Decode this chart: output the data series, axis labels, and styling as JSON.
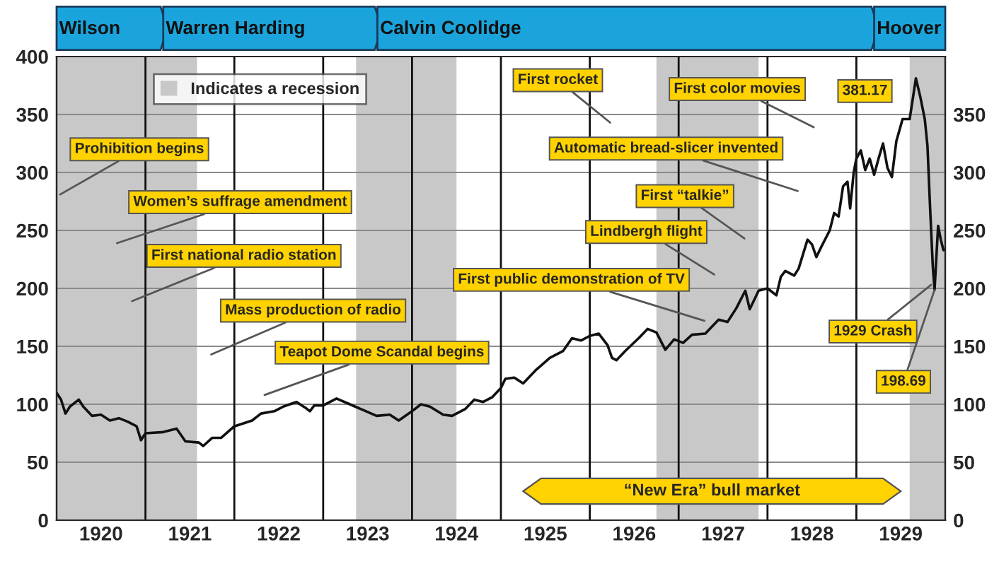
{
  "chart_data": {
    "type": "line",
    "x": [
      1920.0,
      1920.05,
      1920.1,
      1920.15,
      1920.25,
      1920.3,
      1920.4,
      1920.5,
      1920.6,
      1920.7,
      1920.8,
      1920.9,
      1920.95,
      1921.0,
      1921.2,
      1921.35,
      1921.45,
      1921.6,
      1921.65,
      1921.75,
      1921.85,
      1922.0,
      1922.2,
      1922.3,
      1922.45,
      1922.55,
      1922.7,
      1922.8,
      1922.85,
      1922.9,
      1923.0,
      1923.15,
      1923.3,
      1923.45,
      1923.6,
      1923.75,
      1923.85,
      1924.0,
      1924.1,
      1924.2,
      1924.35,
      1924.45,
      1924.6,
      1924.7,
      1924.8,
      1924.9,
      1925.0,
      1925.05,
      1925.15,
      1925.25,
      1925.4,
      1925.55,
      1925.7,
      1925.8,
      1925.9,
      1926.0,
      1926.1,
      1926.2,
      1926.25,
      1926.3,
      1926.4,
      1926.55,
      1926.65,
      1926.75,
      1926.85,
      1926.95,
      1927.05,
      1927.15,
      1927.3,
      1927.45,
      1927.55,
      1927.65,
      1927.75,
      1927.8,
      1927.9,
      1928.0,
      1928.1,
      1928.15,
      1928.2,
      1928.3,
      1928.35,
      1928.45,
      1928.5,
      1928.55,
      1928.6,
      1928.7,
      1928.75,
      1928.8,
      1928.85,
      1928.9,
      1928.93,
      1928.97,
      1929.0,
      1929.05,
      1929.1,
      1929.15,
      1929.2,
      1929.25,
      1929.3,
      1929.35,
      1929.4,
      1929.45,
      1929.52,
      1929.6,
      1929.67,
      1929.72,
      1929.77,
      1929.8,
      1929.83,
      1929.86,
      1929.88,
      1929.92,
      1929.95,
      1929.98
    ],
    "series": [
      {
        "color": "#111111",
        "values": [
          110,
          104,
          92,
          98,
          104,
          98,
          90,
          91,
          86,
          88,
          85,
          81,
          69,
          75,
          76,
          79,
          68,
          67,
          64,
          71,
          71,
          81,
          86,
          92,
          94,
          98,
          102,
          97,
          94,
          99,
          99,
          105,
          100,
          95,
          90,
          91,
          86,
          94,
          100,
          98,
          91,
          90,
          96,
          104,
          102,
          106,
          114,
          122,
          123,
          118,
          130,
          140,
          146,
          157,
          155,
          159,
          161,
          151,
          140,
          138,
          146,
          157,
          165,
          162,
          147,
          156,
          153,
          160,
          161,
          173,
          171,
          183,
          198,
          182,
          198,
          200,
          194,
          210,
          215,
          211,
          217,
          242,
          238,
          227,
          235,
          250,
          265,
          262,
          288,
          292,
          269,
          300,
          312,
          319,
          302,
          312,
          298,
          312,
          325,
          304,
          296,
          327,
          346,
          346,
          381.17,
          365,
          346,
          323,
          269,
          219,
          198.69,
          254,
          242,
          233
        ]
      }
    ],
    "xlim": [
      1920,
      1930
    ],
    "xticks": [
      {
        "value": 1920.5,
        "label": "1920"
      },
      {
        "value": 1921,
        "label": null
      },
      {
        "value": 1921.5,
        "label": "1921"
      },
      {
        "value": 1922,
        "label": null
      },
      {
        "value": 1922.5,
        "label": "1922"
      },
      {
        "value": 1923,
        "label": null
      },
      {
        "value": 1923.5,
        "label": "1923"
      },
      {
        "value": 1924,
        "label": null
      },
      {
        "value": 1924.5,
        "label": "1924"
      },
      {
        "value": 1925,
        "label": null
      },
      {
        "value": 1925.5,
        "label": "1925"
      },
      {
        "value": 1926,
        "label": null
      },
      {
        "value": 1926.5,
        "label": "1926"
      },
      {
        "value": 1927,
        "label": null
      },
      {
        "value": 1927.5,
        "label": "1927"
      },
      {
        "value": 1928,
        "label": null
      },
      {
        "value": 1928.5,
        "label": "1928"
      },
      {
        "value": 1929,
        "label": null
      },
      {
        "value": 1929.5,
        "label": "1929"
      }
    ],
    "ylim": [
      0,
      400
    ],
    "yticks": [
      0,
      50,
      100,
      150,
      200,
      250,
      300,
      350,
      400
    ],
    "y2lim": [
      0,
      400
    ],
    "y2ticks": [
      0,
      50,
      100,
      150,
      200,
      250,
      300,
      350
    ],
    "grid": true,
    "legend": "top left",
    "bands": [
      {
        "axis": "x",
        "from": 1920.0,
        "to": 1921.58,
        "color": "#c8c8c8",
        "label": "Indicates a recession"
      },
      {
        "axis": "x",
        "from": 1923.37,
        "to": 1924.5,
        "color": "#c8c8c8"
      },
      {
        "axis": "x",
        "from": 1926.75,
        "to": 1927.9,
        "color": "#c8c8c8"
      },
      {
        "axis": "x",
        "from": 1929.6,
        "to": 1930,
        "color": "#c8c8c8"
      }
    ],
    "annotations": [
      "Wilson",
      "Warren Harding",
      "Calvin Coolidge",
      "Hoover",
      "“New Era” bull market",
      {
        "text": "Prohibition begins",
        "x": 1920.04,
        "y": 281
      },
      "Women’s suffrage amendment",
      "First national radio station",
      "Mass production of radio",
      "Teapot Dome Scandal begins",
      "First public demonstration of TV",
      "Lindbergh flight",
      "First “talkie”",
      "Automatic bread-slicer invented",
      "First color movies",
      "First rocket",
      {
        "text": "1929 Crash",
        "x": 1929.84,
        "y": 203
      },
      {
        "text": "381.17",
        "x": 1929.67,
        "y": 381.17
      },
      {
        "text": "198.69",
        "x": 1929.88,
        "y": 198.69
      }
    ]
  }
}
